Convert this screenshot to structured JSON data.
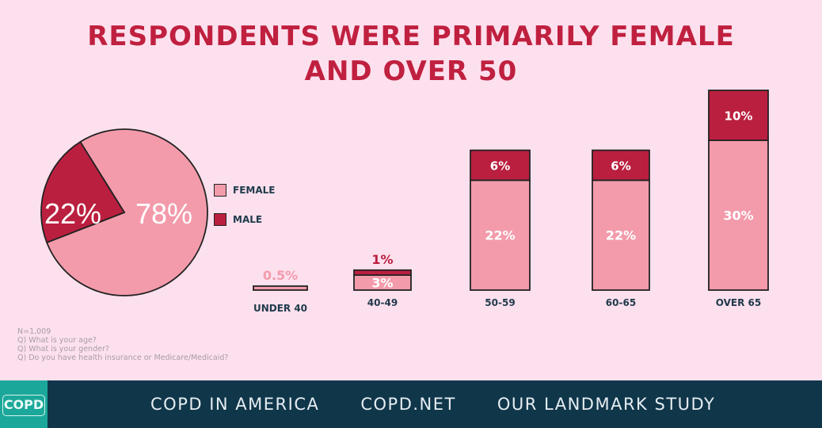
{
  "chart_data": [
    {
      "type": "pie",
      "title": "Respondents were primarily female and over 50",
      "slices": [
        {
          "name": "Female",
          "value": 78,
          "label": "78%",
          "color": "#f39bab"
        },
        {
          "name": "Male",
          "value": 22,
          "label": "22%",
          "color": "#bb1f3f"
        }
      ],
      "legend": [
        "FEMALE",
        "MALE"
      ],
      "legend_placement": "right"
    },
    {
      "type": "bar",
      "stacked": true,
      "categories": [
        "UNDER 40",
        "40-49",
        "50-59",
        "60-65",
        "OVER 65"
      ],
      "series": [
        {
          "name": "Female",
          "values": [
            0.5,
            3,
            22,
            22,
            30
          ],
          "labels": [
            "0.5%",
            "3%",
            "22%",
            "22%",
            "30%"
          ],
          "color": "#f39bab"
        },
        {
          "name": "Male",
          "values": [
            0,
            1,
            6,
            6,
            10
          ],
          "labels": [
            "",
            "1%",
            "6%",
            "6%",
            "10%"
          ],
          "color": "#bb1f3f"
        }
      ]
    }
  ],
  "title_line1": "RESPONDENTS WERE PRIMARILY FEMALE",
  "title_line2": "AND OVER 50",
  "notes": [
    "N=1,009",
    "Q) What is your age?",
    "Q) What is your gender?",
    "Q) Do you have health insurance or Medicare/Medicaid?"
  ],
  "footer": {
    "logo": "COPD",
    "links": [
      "COPD IN AMERICA",
      "COPD.NET",
      "OUR LANDMARK STUDY"
    ]
  }
}
